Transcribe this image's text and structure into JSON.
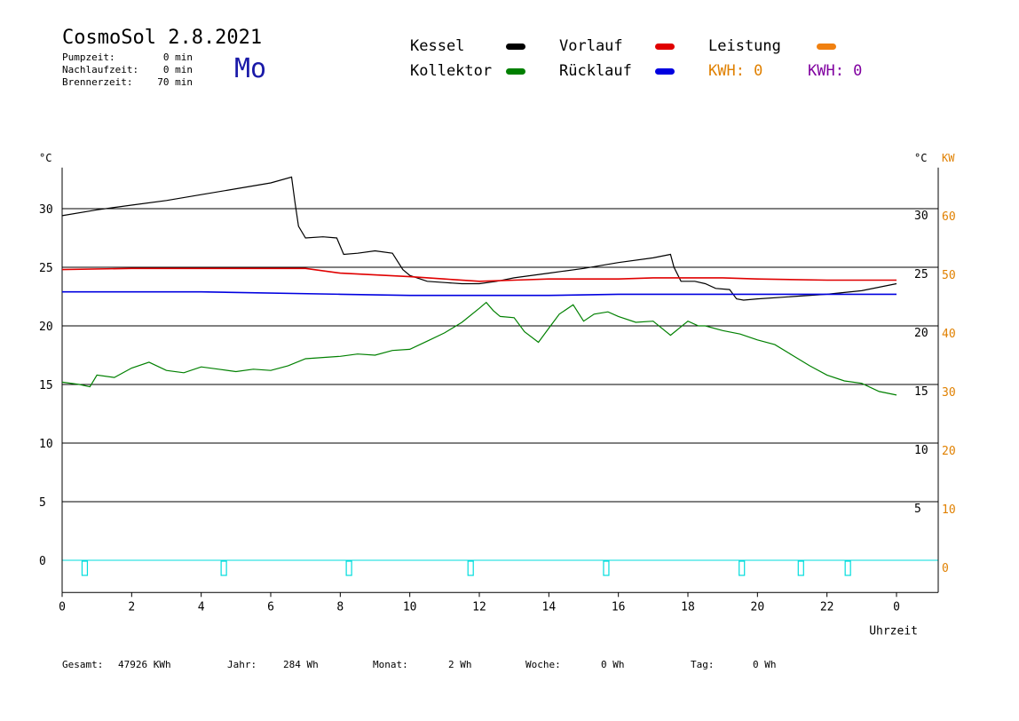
{
  "header": {
    "title": "CosmoSol 2.8.2021",
    "day": "Mo",
    "stats": [
      {
        "label": "Pumpzeit:",
        "value": "0 min"
      },
      {
        "label": "Nachlaufzeit:",
        "value": "0 min"
      },
      {
        "label": "Brennerzeit:",
        "value": "70 min"
      }
    ]
  },
  "legend": {
    "items": [
      {
        "label": "Kessel",
        "color": "#000000"
      },
      {
        "label": "Vorlauf",
        "color": "#e00000"
      },
      {
        "label": "Leistung",
        "color": "#f08010"
      },
      {
        "label": "Kollektor",
        "color": "#008000"
      },
      {
        "label": "Rücklauf",
        "color": "#0000e0"
      }
    ],
    "kwh_orange": "KWH: 0",
    "kwh_purple": "KWH: 0",
    "kwh_orange_color": "#e08000",
    "kwh_purple_color": "#8000a0"
  },
  "footer": [
    {
      "label": "Gesamt:",
      "value": "47926 KWh"
    },
    {
      "label": "Jahr:",
      "value": "284 Wh"
    },
    {
      "label": "Monat:",
      "value": "2 Wh"
    },
    {
      "label": "Woche:",
      "value": "0 Wh"
    },
    {
      "label": "Tag:",
      "value": "0 Wh"
    }
  ],
  "chart_data": {
    "type": "line",
    "xlabel": "Uhrzeit",
    "x_ticks": [
      "0",
      "2",
      "4",
      "6",
      "8",
      "10",
      "12",
      "14",
      "16",
      "18",
      "20",
      "22",
      "0"
    ],
    "xlim": [
      0,
      24
    ],
    "ylim": [
      0,
      35
    ],
    "y_ticks_left": [
      "0",
      "5",
      "10",
      "15",
      "20",
      "25",
      "30"
    ],
    "y_ticks_right": [
      "5",
      "10",
      "15",
      "20",
      "25",
      "30"
    ],
    "y_ticks_kw": [
      "0",
      "10",
      "20",
      "30",
      "40",
      "50",
      "60"
    ],
    "y_unit_left": "°C",
    "y_unit_right": "°C",
    "y_unit_kw": "KW",
    "grid": true,
    "series": [
      {
        "name": "Kessel",
        "color": "#000000",
        "x": [
          0,
          1,
          2,
          3,
          4,
          5,
          6,
          6.6,
          6.7,
          6.8,
          7,
          7.5,
          7.9,
          8.1,
          8.5,
          9,
          9.5,
          9.8,
          10,
          10.5,
          11,
          11.5,
          12,
          12.5,
          13,
          14,
          15,
          16,
          17,
          17.5,
          17.6,
          17.8,
          18.2,
          18.5,
          18.8,
          19.2,
          19.4,
          19.6,
          20,
          21,
          22,
          23,
          24
        ],
        "y": [
          29.4,
          29.9,
          30.3,
          30.7,
          31.2,
          31.7,
          32.2,
          32.7,
          30.5,
          28.5,
          27.5,
          27.6,
          27.5,
          26.1,
          26.2,
          26.4,
          26.2,
          24.8,
          24.3,
          23.8,
          23.7,
          23.6,
          23.6,
          23.8,
          24.1,
          24.5,
          24.9,
          25.4,
          25.8,
          26.1,
          25.0,
          23.8,
          23.8,
          23.6,
          23.2,
          23.1,
          22.3,
          22.2,
          22.3,
          22.5,
          22.7,
          23.0,
          23.6
        ]
      },
      {
        "name": "Vorlauf",
        "color": "#e00000",
        "x": [
          0,
          2,
          4,
          6,
          7,
          8,
          10,
          11,
          12,
          13,
          14,
          15,
          16,
          17,
          18,
          19,
          20,
          22,
          24
        ],
        "y": [
          24.8,
          24.9,
          24.9,
          24.9,
          24.9,
          24.5,
          24.2,
          24.0,
          23.8,
          23.9,
          24.0,
          24.0,
          24.0,
          24.1,
          24.1,
          24.1,
          24.0,
          23.9,
          23.9
        ]
      },
      {
        "name": "Rücklauf",
        "color": "#0000e0",
        "x": [
          0,
          4,
          8,
          10,
          12,
          14,
          16,
          18,
          20,
          22,
          24
        ],
        "y": [
          22.9,
          22.9,
          22.7,
          22.6,
          22.6,
          22.6,
          22.7,
          22.7,
          22.7,
          22.7,
          22.7
        ]
      },
      {
        "name": "Kollektor",
        "color": "#008000",
        "x": [
          0,
          0.5,
          0.8,
          1,
          1.5,
          2,
          2.5,
          3,
          3.5,
          4,
          4.5,
          5,
          5.5,
          6,
          6.5,
          7,
          7.5,
          8,
          8.5,
          9,
          9.5,
          10,
          10.5,
          11,
          11.5,
          12,
          12.2,
          12.4,
          12.6,
          13,
          13.3,
          13.7,
          14,
          14.3,
          14.7,
          15,
          15.3,
          15.7,
          16,
          16.5,
          17,
          17.5,
          18,
          18.3,
          18.5,
          19,
          19.5,
          20,
          20.5,
          21,
          21.5,
          22,
          22.5,
          23,
          23.5,
          24
        ],
        "y": [
          15.2,
          15.0,
          14.8,
          15.8,
          15.6,
          16.4,
          16.9,
          16.2,
          16.0,
          16.5,
          16.3,
          16.1,
          16.3,
          16.2,
          16.6,
          17.2,
          17.3,
          17.4,
          17.6,
          17.5,
          17.9,
          18.0,
          18.7,
          19.4,
          20.3,
          21.5,
          22.0,
          21.3,
          20.8,
          20.7,
          19.5,
          18.6,
          19.8,
          21.0,
          21.8,
          20.4,
          21.0,
          21.2,
          20.8,
          20.3,
          20.4,
          19.2,
          20.4,
          20.0,
          20.0,
          19.6,
          19.3,
          18.8,
          18.4,
          17.5,
          16.6,
          15.8,
          15.3,
          15.1,
          14.4,
          14.1
        ]
      }
    ],
    "pump_markers_x": [
      0.65,
      4.65,
      8.25,
      11.75,
      15.65,
      19.55,
      21.25,
      22.6
    ],
    "pump_baseline": 0
  }
}
